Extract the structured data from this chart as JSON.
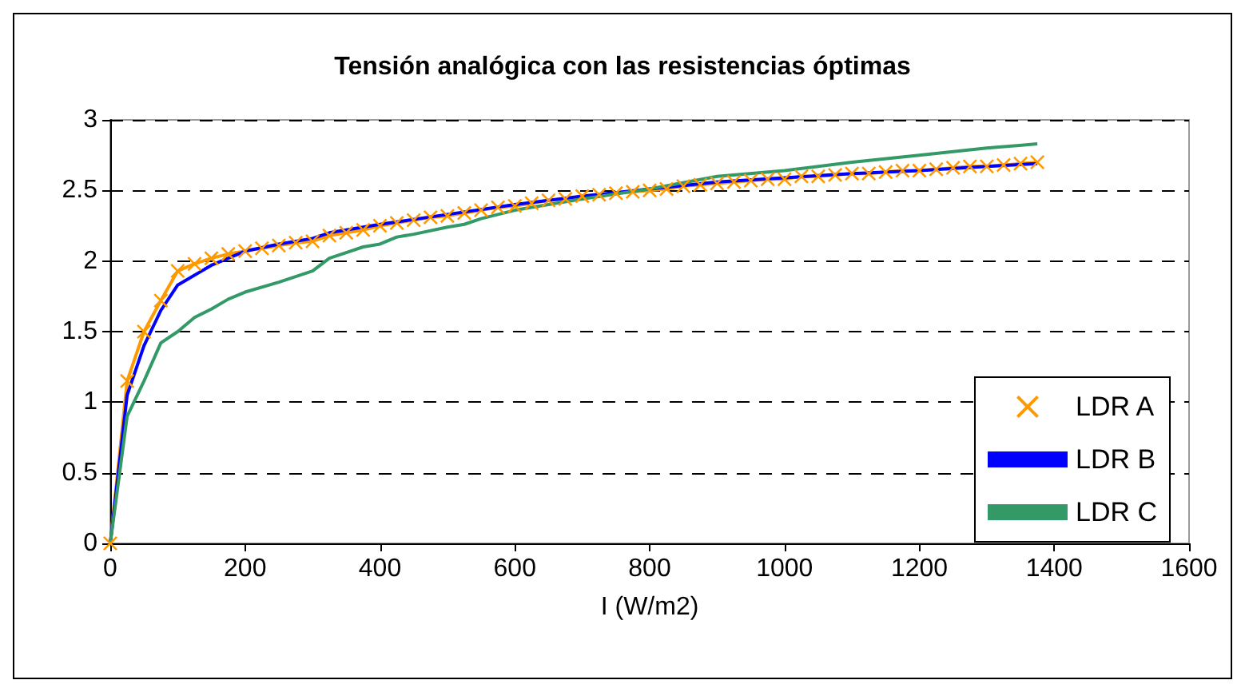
{
  "chart_data": {
    "type": "line",
    "title": "Tensión analógica con las resistencias óptimas",
    "xlabel": "I (W/m2)",
    "xlim": [
      0,
      1600
    ],
    "xticks": [
      0,
      200,
      400,
      600,
      800,
      1000,
      1200,
      1400,
      1600
    ],
    "ylim": [
      0,
      3
    ],
    "yticks": [
      0,
      0.5,
      1,
      1.5,
      2,
      2.5,
      3
    ],
    "grid": "y",
    "legend": "bottom right",
    "line_style": "solid",
    "series": [
      {
        "name": "LDR A",
        "color": "#ff9900",
        "marker": "cross",
        "x": [
          0,
          25,
          50,
          75,
          100,
          125,
          150,
          175,
          200,
          225,
          250,
          275,
          300,
          325,
          350,
          375,
          400,
          425,
          450,
          475,
          500,
          525,
          550,
          575,
          600,
          625,
          650,
          675,
          700,
          725,
          750,
          775,
          800,
          825,
          850,
          875,
          900,
          925,
          950,
          975,
          1000,
          1025,
          1050,
          1075,
          1100,
          1125,
          1150,
          1175,
          1200,
          1225,
          1250,
          1275,
          1300,
          1325,
          1350,
          1375
        ],
        "values": [
          0,
          1.15,
          1.5,
          1.72,
          1.93,
          1.98,
          2.02,
          2.05,
          2.07,
          2.09,
          2.11,
          2.13,
          2.14,
          2.18,
          2.2,
          2.22,
          2.25,
          2.27,
          2.29,
          2.31,
          2.32,
          2.34,
          2.36,
          2.38,
          2.39,
          2.41,
          2.43,
          2.44,
          2.46,
          2.47,
          2.48,
          2.49,
          2.5,
          2.51,
          2.53,
          2.54,
          2.55,
          2.56,
          2.57,
          2.58,
          2.58,
          2.6,
          2.6,
          2.61,
          2.62,
          2.62,
          2.63,
          2.64,
          2.64,
          2.65,
          2.66,
          2.67,
          2.67,
          2.68,
          2.69,
          2.7
        ]
      },
      {
        "name": "LDR B",
        "color": "#0000ff",
        "marker": "none",
        "x": [
          0,
          25,
          50,
          75,
          100,
          150,
          200,
          250,
          300,
          325,
          400,
          500,
          600,
          700,
          800,
          900,
          1000,
          1100,
          1200,
          1300,
          1375
        ],
        "values": [
          0,
          1.05,
          1.4,
          1.65,
          1.83,
          1.97,
          2.07,
          2.12,
          2.16,
          2.2,
          2.26,
          2.33,
          2.4,
          2.46,
          2.51,
          2.56,
          2.59,
          2.62,
          2.64,
          2.67,
          2.69
        ]
      },
      {
        "name": "LDR C",
        "color": "#339966",
        "marker": "none",
        "x": [
          0,
          25,
          50,
          75,
          100,
          125,
          150,
          175,
          200,
          250,
          300,
          325,
          350,
          375,
          400,
          425,
          450,
          500,
          525,
          550,
          600,
          700,
          800,
          900,
          1000,
          1100,
          1200,
          1300,
          1375
        ],
        "values": [
          0,
          0.9,
          1.15,
          1.42,
          1.5,
          1.6,
          1.66,
          1.73,
          1.78,
          1.85,
          1.93,
          2.02,
          2.06,
          2.1,
          2.12,
          2.17,
          2.19,
          2.24,
          2.26,
          2.3,
          2.36,
          2.44,
          2.51,
          2.6,
          2.64,
          2.7,
          2.75,
          2.8,
          2.83
        ]
      }
    ]
  }
}
